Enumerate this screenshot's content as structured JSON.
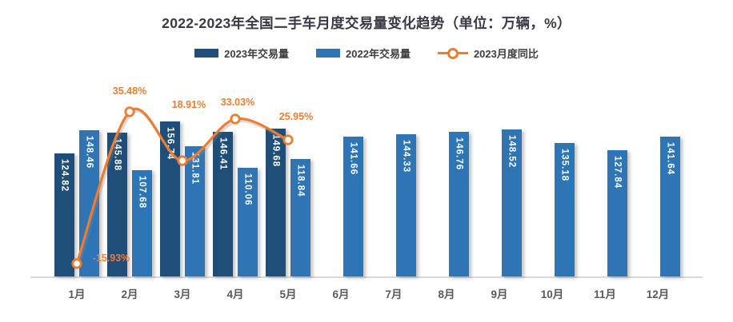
{
  "title": "2022-2023年全国二手车月度交易量变化趋势（单位：万辆，%）",
  "legend": {
    "items": [
      {
        "label": "2023年交易量",
        "type": "bar",
        "color": "#1F4E79"
      },
      {
        "label": "2022年交易量",
        "type": "bar",
        "color": "#2E75B6"
      },
      {
        "label": "2023月度同比",
        "type": "line",
        "color": "#ED7D31"
      }
    ]
  },
  "colors": {
    "bar_2023": "#1F4E79",
    "bar_2022": "#2E75B6",
    "line": "#ED7D31",
    "title_text": "#3A3A47",
    "axis_text": "#595959",
    "axis_line": "#D9D9D9",
    "bar_value_text": "#FFFFFF",
    "background": "#FFFFFF"
  },
  "chart_data": {
    "type": "bar",
    "subtype": "grouped-bars-with-line",
    "title": "2022-2023年全国二手车月度交易量变化趋势（单位：万辆，%）",
    "unit_note": "单位：万辆，%",
    "categories": [
      "1月",
      "2月",
      "3月",
      "4月",
      "5月",
      "6月",
      "7月",
      "8月",
      "9月",
      "10月",
      "11月",
      "12月"
    ],
    "series": [
      {
        "name": "2023年交易量",
        "type": "bar",
        "color": "#1F4E79",
        "values": [
          124.82,
          145.88,
          156.74,
          146.41,
          149.68,
          null,
          null,
          null,
          null,
          null,
          null,
          null
        ]
      },
      {
        "name": "2022年交易量",
        "type": "bar",
        "color": "#2E75B6",
        "values": [
          148.46,
          107.68,
          131.81,
          110.06,
          118.84,
          141.66,
          144.33,
          146.76,
          148.52,
          135.18,
          127.84,
          141.64
        ]
      },
      {
        "name": "2023月度同比",
        "type": "line",
        "color": "#ED7D31",
        "unit": "%",
        "smooth": true,
        "values": [
          -15.93,
          35.48,
          18.91,
          33.03,
          25.95,
          null,
          null,
          null,
          null,
          null,
          null,
          null
        ]
      }
    ],
    "xlabel": "",
    "ylabel": "",
    "ylim": [
      0,
      200
    ],
    "y2lim": [
      -20,
      45
    ],
    "grid": false,
    "y_axis_visible": false,
    "legend_position": "top",
    "value_labels": "inside-vertical-2-decimals",
    "line_labels": "percent-2-decimals"
  }
}
